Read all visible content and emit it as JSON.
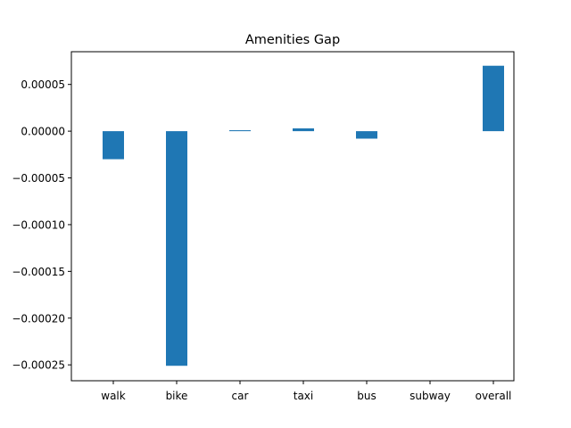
{
  "chart_data": {
    "type": "bar",
    "title": "Amenities Gap",
    "xlabel": "",
    "ylabel": "",
    "categories": [
      "walk",
      "bike",
      "car",
      "taxi",
      "bus",
      "subway",
      "overall"
    ],
    "values": [
      -3e-05,
      -0.000251,
      1e-06,
      3e-06,
      -8e-06,
      0.0,
      7e-05
    ],
    "ylim": [
      -0.000267,
      8.5e-05
    ],
    "yticks": [
      5e-05,
      0.0,
      -5e-05,
      -0.0001,
      -0.00015,
      -0.0002,
      -0.00025
    ],
    "ytick_labels": [
      "0.00005",
      "0.00000",
      "−0.00005",
      "−0.00010",
      "−0.00015",
      "−0.00020",
      "−0.00025"
    ],
    "grid": false,
    "bar_color": "#1f77b4"
  }
}
